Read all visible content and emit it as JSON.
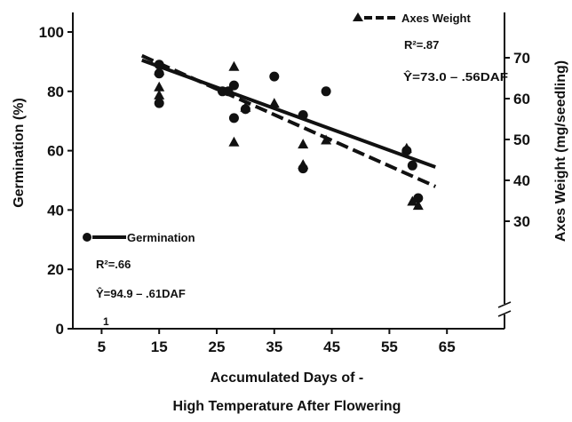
{
  "chart_data": {
    "type": "scatter",
    "xlabel_line1": "Accumulated Days of -",
    "xlabel_line2": "High Temperature After Flowering",
    "ylabel_left": "Germination (%)",
    "ylabel_right": "Axes Weight (mg/seedling)",
    "x_ticks": [
      "5",
      "15",
      "25",
      "35",
      "45",
      "55",
      "65"
    ],
    "x_tick_values": [
      5,
      15,
      25,
      35,
      45,
      55,
      65
    ],
    "xlim": [
      0,
      75
    ],
    "y_left_ticks": [
      "0",
      "20",
      "40",
      "60",
      "80",
      "100"
    ],
    "y_left_tick_values": [
      0,
      20,
      40,
      60,
      80,
      100
    ],
    "ylim_left": [
      0,
      105
    ],
    "y_right_ticks": [
      "30",
      "40",
      "50",
      "60",
      "70"
    ],
    "y_right_tick_values": [
      30,
      40,
      50,
      60,
      70
    ],
    "series": [
      {
        "name": "Germination",
        "axis": "left",
        "marker": "circle",
        "line_style": "solid",
        "r2": "R²=.66",
        "equation": "Ŷ=94.9 – .61DAF",
        "points": [
          [
            15,
            89
          ],
          [
            15,
            86
          ],
          [
            15,
            76
          ],
          [
            26,
            80
          ],
          [
            27,
            80
          ],
          [
            28,
            82
          ],
          [
            28,
            71
          ],
          [
            30,
            74
          ],
          [
            35,
            85
          ],
          [
            40,
            72
          ],
          [
            40,
            54
          ],
          [
            44,
            80
          ],
          [
            58,
            60
          ],
          [
            59,
            55
          ],
          [
            60,
            44
          ]
        ],
        "fit": [
          [
            12,
            90.5
          ],
          [
            63,
            54.5
          ]
        ]
      },
      {
        "name": "Axes Weight",
        "axis": "right",
        "marker": "triangle",
        "line_style": "dashed",
        "r2": "R²=.87",
        "equation": "Ŷ=73.0 – .56DAF",
        "points": [
          [
            15,
            67
          ],
          [
            15,
            63
          ],
          [
            15,
            61
          ],
          [
            28,
            68
          ],
          [
            28,
            49.5
          ],
          [
            30,
            58
          ],
          [
            35,
            59
          ],
          [
            40,
            49
          ],
          [
            40,
            44
          ],
          [
            44,
            50
          ],
          [
            58,
            48
          ],
          [
            59,
            35
          ],
          [
            60,
            34
          ]
        ],
        "fit": [
          [
            12,
            70.5
          ],
          [
            63,
            38.5
          ]
        ]
      }
    ],
    "legend": [
      {
        "label": "Axes Weight",
        "r2": "R²=.87",
        "equation": "Ŷ=73.0 – .56DAF"
      },
      {
        "label": "Germination",
        "r2": "R²=.66",
        "equation": "Ŷ=94.9 – .61DAF"
      }
    ],
    "axis_break_label": "1",
    "colors": {
      "ink": "#111111",
      "background": "#ffffff"
    }
  }
}
